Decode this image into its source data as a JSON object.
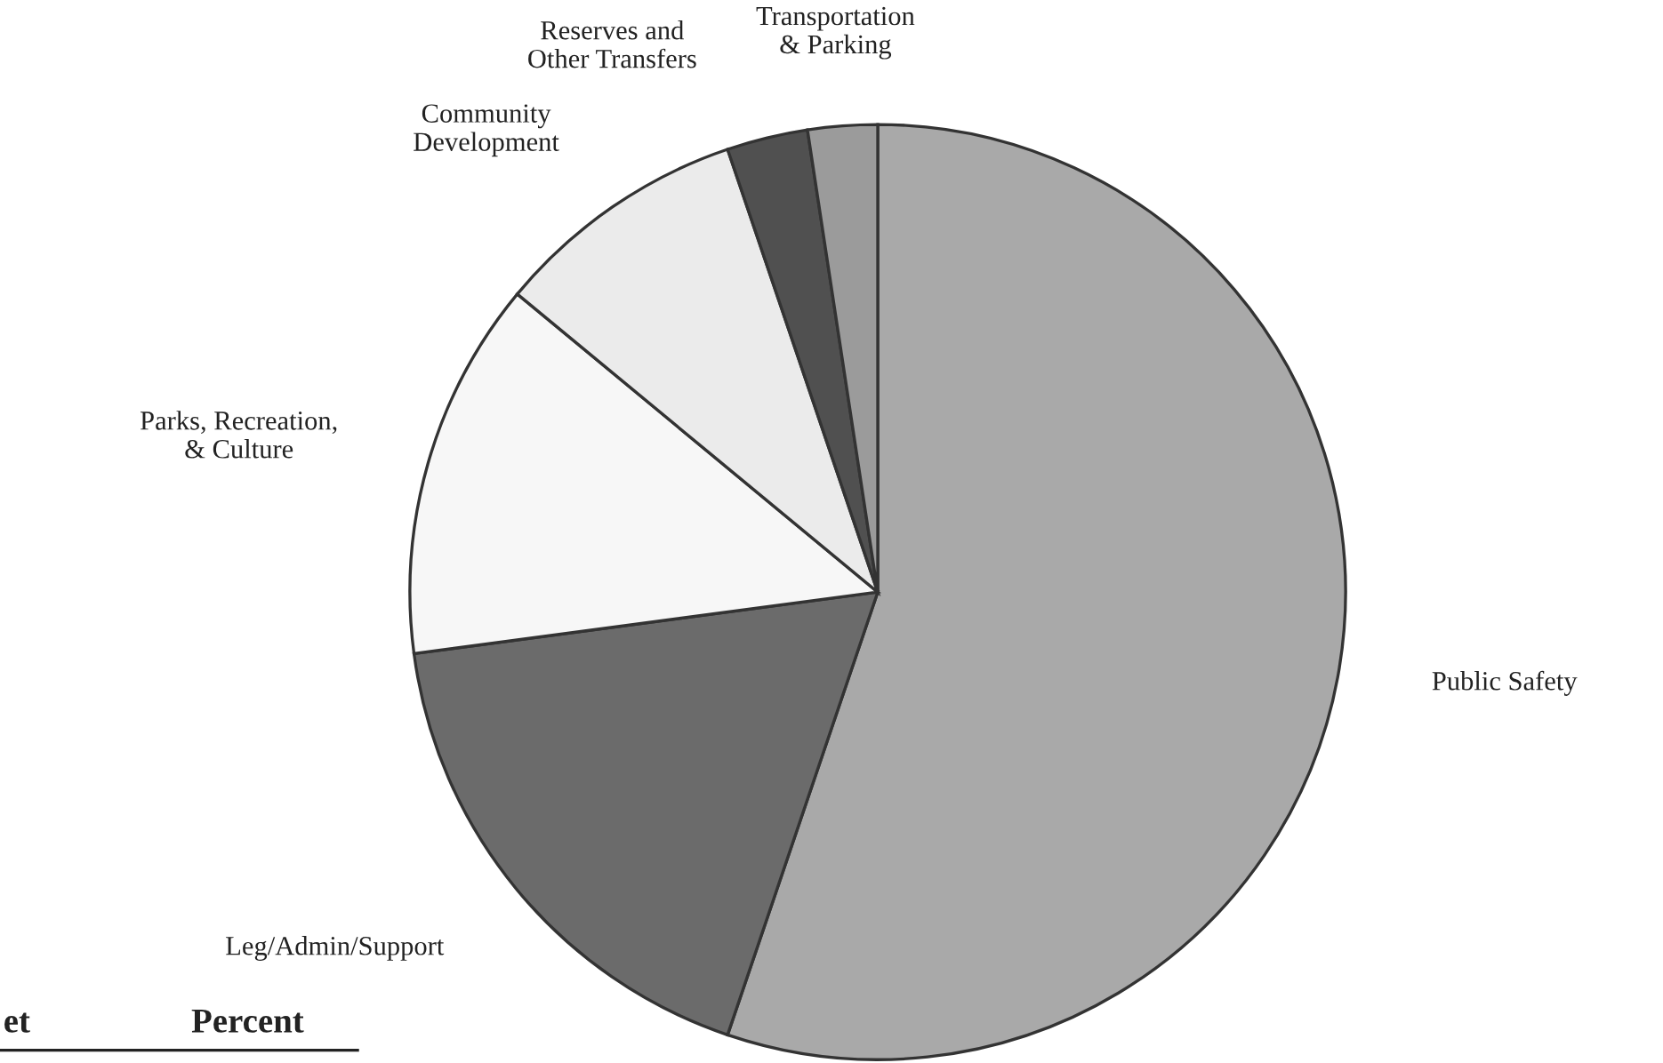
{
  "chart_data": {
    "type": "pie",
    "categories": [
      "Public Safety",
      "Leg/Admin/Support",
      "Parks, Recreation, & Culture",
      "Community Development",
      "Reserves and Other Transfers",
      "Transportation & Parking"
    ],
    "values": [
      55.2,
      17.7,
      13.1,
      8.8,
      2.8,
      2.4
    ],
    "colors": [
      "#a9a9a9",
      "#6b6b6b",
      "#f7f7f7",
      "#ebebeb",
      "#505050",
      "#9b9b9b"
    ],
    "annotations": [
      "et",
      "Percent"
    ]
  }
}
